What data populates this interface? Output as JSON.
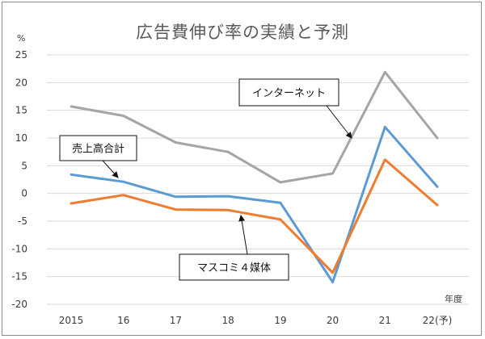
{
  "chart_data": {
    "type": "line",
    "title": "広告費伸び率の実績と予測",
    "ylabel": "%",
    "xlabel": "年度",
    "ylim": [
      -20,
      25
    ],
    "yticks": [
      -20,
      -15,
      -10,
      -5,
      0,
      5,
      10,
      15,
      20,
      25
    ],
    "grid": true,
    "categories": [
      "2015",
      "16",
      "17",
      "18",
      "19",
      "20",
      "21",
      "22(予)"
    ],
    "series": [
      {
        "name": "インターネット",
        "color": "#a5a5a5",
        "values": [
          15.7,
          14.0,
          9.2,
          7.5,
          2.0,
          3.6,
          21.9,
          10.0
        ]
      },
      {
        "name": "売上高合計",
        "color": "#5b9bd5",
        "values": [
          3.4,
          2.1,
          -0.6,
          -0.5,
          -1.7,
          -16.0,
          12.0,
          1.2
        ]
      },
      {
        "name": "マスコミ４媒体",
        "color": "#ed7d31",
        "values": [
          -1.8,
          -0.3,
          -2.9,
          -3.0,
          -4.7,
          -14.3,
          6.1,
          -2.1
        ]
      }
    ]
  }
}
